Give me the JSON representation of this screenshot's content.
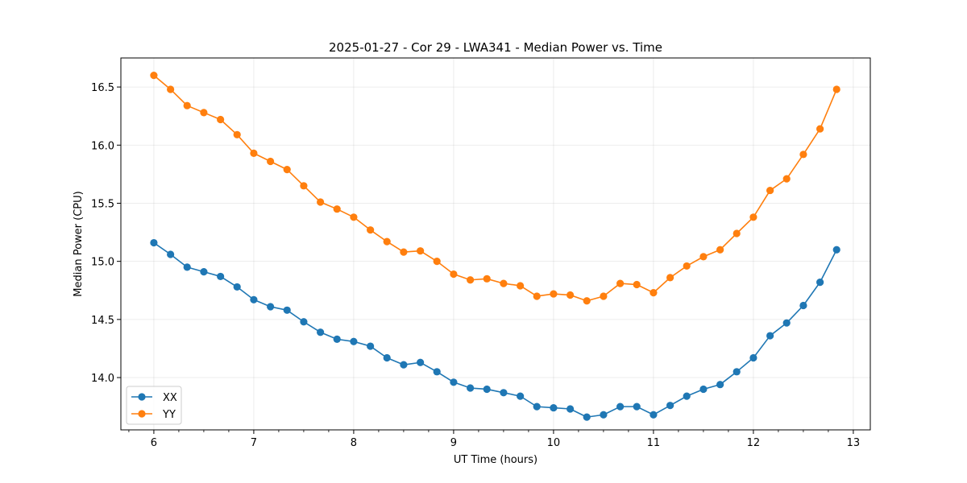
{
  "chart_data": {
    "type": "line",
    "title": "2025-01-27 - Cor 29 - LWA341 - Median Power vs. Time",
    "xlabel": "UT Time (hours)",
    "ylabel": "Median Power (CPU)",
    "xlim": [
      5.67,
      13.17
    ],
    "ylim": [
      13.55,
      16.75
    ],
    "xticks": [
      6,
      7,
      8,
      9,
      10,
      11,
      12,
      13
    ],
    "yticks": [
      14.0,
      14.5,
      15.0,
      15.5,
      16.0,
      16.5
    ],
    "grid": true,
    "legend_position": "lower-left",
    "x": [
      6.0,
      6.167,
      6.333,
      6.5,
      6.667,
      6.833,
      7.0,
      7.167,
      7.333,
      7.5,
      7.667,
      7.833,
      8.0,
      8.167,
      8.333,
      8.5,
      8.667,
      8.833,
      9.0,
      9.167,
      9.333,
      9.5,
      9.667,
      9.833,
      10.0,
      10.167,
      10.333,
      10.5,
      10.667,
      10.833,
      11.0,
      11.167,
      11.333,
      11.5,
      11.667,
      11.833,
      12.0,
      12.167,
      12.333,
      12.5,
      12.667,
      12.833
    ],
    "series": [
      {
        "name": "XX",
        "color": "#1f77b4",
        "values": [
          15.16,
          15.06,
          14.95,
          14.91,
          14.87,
          14.78,
          14.67,
          14.61,
          14.58,
          14.48,
          14.39,
          14.33,
          14.31,
          14.27,
          14.17,
          14.11,
          14.13,
          14.05,
          13.96,
          13.91,
          13.9,
          13.87,
          13.84,
          13.75,
          13.74,
          13.73,
          13.66,
          13.68,
          13.75,
          13.75,
          13.68,
          13.76,
          13.84,
          13.9,
          13.94,
          14.05,
          14.17,
          14.36,
          14.47,
          14.62,
          14.82,
          15.1
        ]
      },
      {
        "name": "YY",
        "color": "#ff7f0e",
        "values": [
          16.6,
          16.48,
          16.34,
          16.28,
          16.22,
          16.09,
          15.93,
          15.86,
          15.79,
          15.65,
          15.51,
          15.45,
          15.38,
          15.27,
          15.17,
          15.08,
          15.09,
          15.0,
          14.89,
          14.84,
          14.85,
          14.81,
          14.79,
          14.7,
          14.72,
          14.71,
          14.66,
          14.7,
          14.81,
          14.8,
          14.73,
          14.86,
          14.96,
          15.04,
          15.1,
          15.24,
          15.38,
          15.61,
          15.71,
          15.92,
          16.14,
          16.48
        ]
      }
    ]
  }
}
